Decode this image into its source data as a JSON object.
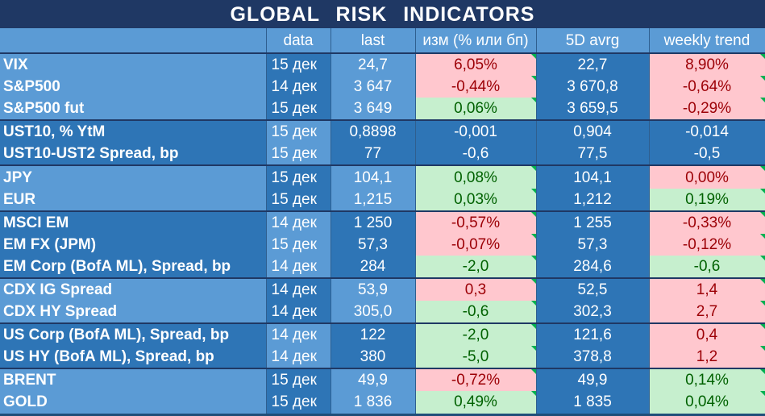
{
  "title": "GLOBAL   RISK   INDICATORS",
  "headers": [
    "",
    "data",
    "last",
    "изм (% или бп)",
    "5D avrg",
    "weekly trend"
  ],
  "rows": [
    {
      "name": "VIX",
      "date": "15 дек",
      "last": "24,7",
      "change": "6,05%",
      "change_dir": "neg",
      "avg": "22,7",
      "trend": "8,90%",
      "trend_dir": "neg",
      "shade": "light",
      "group_start": true
    },
    {
      "name": "S&P500",
      "date": "14 дек",
      "last": "3 647",
      "change": "-0,44%",
      "change_dir": "neg",
      "avg": "3 670,8",
      "trend": "-0,64%",
      "trend_dir": "neg",
      "shade": "light",
      "group_start": false
    },
    {
      "name": "S&P500 fut",
      "date": "15 дек",
      "last": "3 649",
      "change": "0,06%",
      "change_dir": "pos",
      "avg": "3 659,5",
      "trend": "-0,29%",
      "trend_dir": "neg",
      "shade": "light",
      "group_start": false
    },
    {
      "name": "UST10, % YtM",
      "date": "15 дек",
      "last": "0,8898",
      "change": "-0,001",
      "change_dir": "none",
      "avg": "0,904",
      "trend": "-0,014",
      "trend_dir": "none",
      "shade": "dark",
      "group_start": true
    },
    {
      "name": "UST10-UST2 Spread, bp",
      "date": "15 дек",
      "last": "77",
      "change": "-0,6",
      "change_dir": "none",
      "avg": "77,5",
      "trend": "-0,5",
      "trend_dir": "none",
      "shade": "dark",
      "group_start": false
    },
    {
      "name": "JPY",
      "date": "15 дек",
      "last": "104,1",
      "change": "0,08%",
      "change_dir": "pos",
      "avg": "104,1",
      "trend": "0,00%",
      "trend_dir": "neg",
      "shade": "light",
      "group_start": true
    },
    {
      "name": "EUR",
      "date": "15 дек",
      "last": "1,215",
      "change": "0,03%",
      "change_dir": "pos",
      "avg": "1,212",
      "trend": "0,19%",
      "trend_dir": "pos",
      "shade": "light",
      "group_start": false
    },
    {
      "name": "MSCI EM",
      "date": "14 дек",
      "last": "1 250",
      "change": "-0,57%",
      "change_dir": "neg",
      "avg": "1 255",
      "trend": "-0,33%",
      "trend_dir": "neg",
      "shade": "dark",
      "group_start": true
    },
    {
      "name": "EM FX (JPM)",
      "date": "15 дек",
      "last": "57,3",
      "change": "-0,07%",
      "change_dir": "neg",
      "avg": "57,3",
      "trend": "-0,12%",
      "trend_dir": "neg",
      "shade": "dark",
      "group_start": false
    },
    {
      "name": "EM Corp (BofA ML), Spread, bp",
      "date": "14 дек",
      "last": "284",
      "change": "-2,0",
      "change_dir": "pos",
      "avg": "284,6",
      "trend": "-0,6",
      "trend_dir": "pos",
      "shade": "dark",
      "group_start": false
    },
    {
      "name": "CDX IG Spread",
      "date": "14 дек",
      "last": "53,9",
      "change": "0,3",
      "change_dir": "neg",
      "avg": "52,5",
      "trend": "1,4",
      "trend_dir": "neg",
      "shade": "light",
      "group_start": true
    },
    {
      "name": "CDX HY Spread",
      "date": "14 дек",
      "last": "305,0",
      "change": "-0,6",
      "change_dir": "pos",
      "avg": "302,3",
      "trend": "2,7",
      "trend_dir": "neg",
      "shade": "light",
      "group_start": false
    },
    {
      "name": "US Corp (BofA ML), Spread, bp",
      "date": "14 дек",
      "last": "122",
      "change": "-2,0",
      "change_dir": "pos",
      "avg": "121,6",
      "trend": "0,4",
      "trend_dir": "neg",
      "shade": "dark",
      "group_start": true
    },
    {
      "name": "US HY (BofA ML), Spread, bp",
      "date": "14 дек",
      "last": "380",
      "change": "-5,0",
      "change_dir": "pos",
      "avg": "378,8",
      "trend": "1,2",
      "trend_dir": "neg",
      "shade": "dark",
      "group_start": false
    },
    {
      "name": "BRENT",
      "date": "15 дек",
      "last": "49,9",
      "change": "-0,72%",
      "change_dir": "neg",
      "avg": "49,9",
      "trend": "0,14%",
      "trend_dir": "pos",
      "shade": "light",
      "group_start": true
    },
    {
      "name": "GOLD",
      "date": "15 дек",
      "last": "1 836",
      "change": "0,49%",
      "change_dir": "pos",
      "avg": "1 835",
      "trend": "0,04%",
      "trend_dir": "pos",
      "shade": "light",
      "group_start": false
    }
  ],
  "colors": {
    "title_bg": "#1f3864",
    "header_bg": "#5b9bd5",
    "light_bg": "#5b9bd5",
    "dark_bg": "#2e75b6",
    "neg_bg": "#ffc7ce",
    "neg_text": "#9c0006",
    "pos_bg": "#c6efce",
    "pos_text": "#006100"
  }
}
